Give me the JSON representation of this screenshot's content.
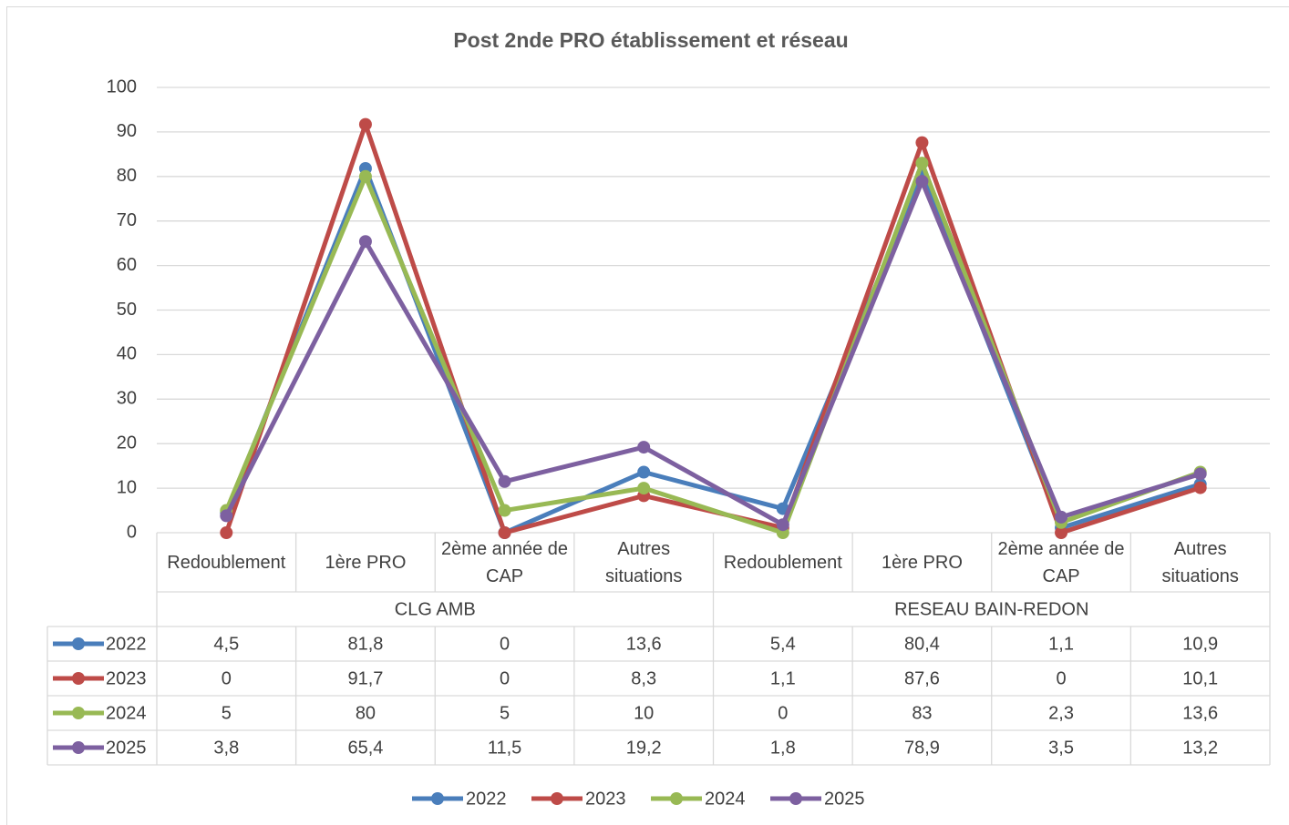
{
  "chart_data": {
    "type": "line",
    "title": "Post 2nde PRO établissement et réseau",
    "categories": [
      "Redoublement",
      "1ère PRO",
      "2ème année de CAP",
      "Autres situations",
      "Redoublement",
      "1ère PRO",
      "2ème année de CAP",
      "Autres situations"
    ],
    "groups": [
      "CLG AMB",
      "RESEAU BAIN-REDON"
    ],
    "series": [
      {
        "name": "2022",
        "color": "#4a7ebb",
        "values": [
          4.5,
          81.8,
          0,
          13.6,
          5.4,
          80.4,
          1.1,
          10.9
        ],
        "value_labels": [
          "4,5",
          "81,8",
          "0",
          "13,6",
          "5,4",
          "80,4",
          "1,1",
          "10,9"
        ]
      },
      {
        "name": "2023",
        "color": "#be4b48",
        "values": [
          0,
          91.7,
          0,
          8.3,
          1.1,
          87.6,
          0,
          10.1
        ],
        "value_labels": [
          "0",
          "91,7",
          "0",
          "8,3",
          "1,1",
          "87,6",
          "0",
          "10,1"
        ]
      },
      {
        "name": "2024",
        "color": "#98b954",
        "values": [
          5,
          80,
          5,
          10,
          0,
          83,
          2.3,
          13.6
        ],
        "value_labels": [
          "5",
          "80",
          "5",
          "10",
          "0",
          "83",
          "2,3",
          "13,6"
        ]
      },
      {
        "name": "2025",
        "color": "#7d60a0",
        "values": [
          3.8,
          65.4,
          11.5,
          19.2,
          1.8,
          78.9,
          3.5,
          13.2
        ],
        "value_labels": [
          "3,8",
          "65,4",
          "11,5",
          "19,2",
          "1,8",
          "78,9",
          "3,5",
          "13,2"
        ]
      }
    ],
    "ylim": [
      0,
      100
    ],
    "yticks": [
      0,
      10,
      20,
      30,
      40,
      50,
      60,
      70,
      80,
      90,
      100
    ],
    "grid": true,
    "legend": "bottom"
  }
}
